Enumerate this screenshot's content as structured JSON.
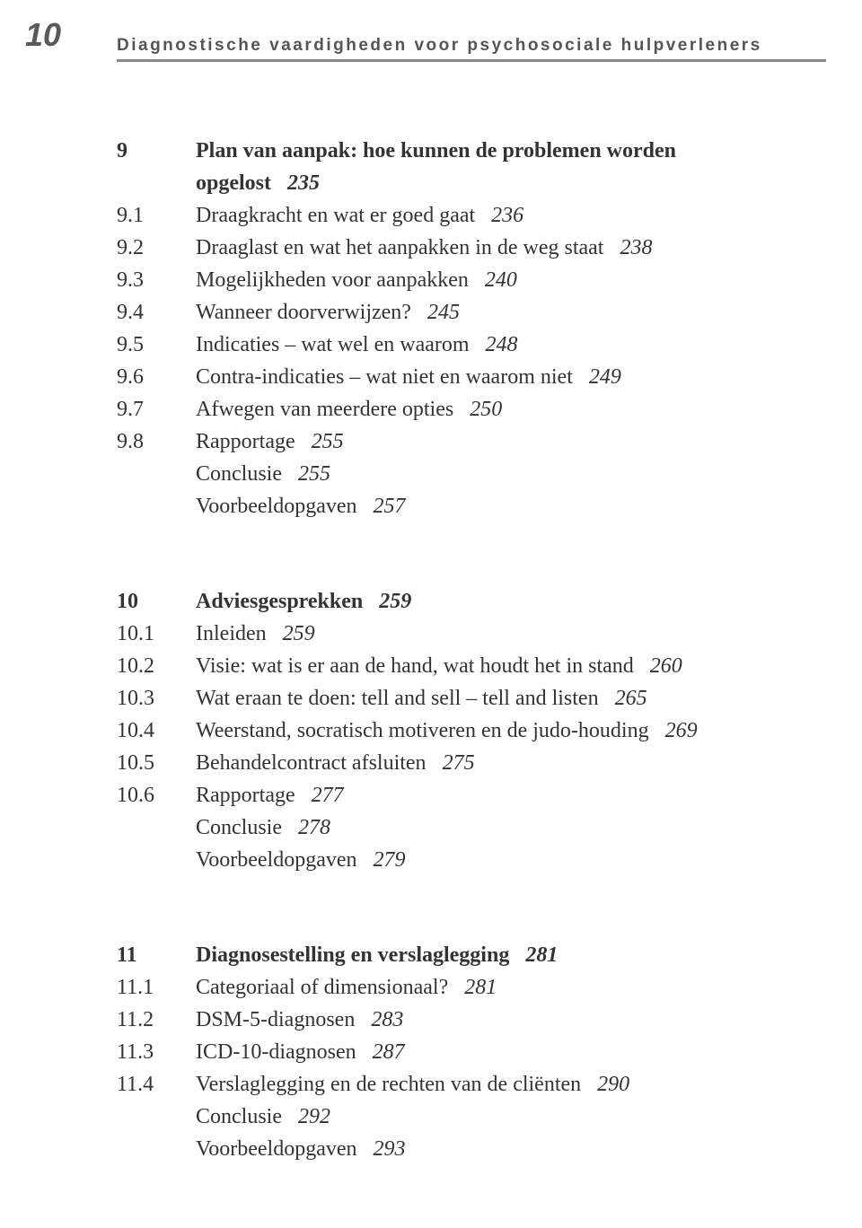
{
  "page_number": "10",
  "running_header": "Diagnostische vaardigheden voor psychosociale hulpverleners",
  "sections": [
    {
      "entries": [
        {
          "num": "9",
          "title_line1": "Plan van aanpak: hoe kunnen de problemen worden",
          "title_line2": "opgelost",
          "page": "235",
          "bold": true
        },
        {
          "num": "9.1",
          "title": "Draagkracht en wat er goed gaat",
          "page": "236"
        },
        {
          "num": "9.2",
          "title": "Draaglast en wat het aanpakken in de weg staat",
          "page": "238"
        },
        {
          "num": "9.3",
          "title": " Mogelijkheden voor aanpakken",
          "page": "240"
        },
        {
          "num": "9.4",
          "title": "Wanneer doorverwijzen?",
          "page": "245"
        },
        {
          "num": "9.5",
          "title": "Indicaties – wat wel en waarom",
          "page": "248"
        },
        {
          "num": "9.6",
          "title": "Contra-indicaties – wat niet en waarom niet",
          "page": "249"
        },
        {
          "num": "9.7",
          "title": "Afwegen van meerdere opties",
          "page": "250"
        },
        {
          "num": "9.8",
          "title": "Rapportage",
          "page": "255"
        },
        {
          "num": "",
          "title": "Conclusie",
          "page": "255"
        },
        {
          "num": "",
          "title": "Voorbeeldopgaven",
          "page": "257"
        }
      ]
    },
    {
      "entries": [
        {
          "num": "10",
          "title": "Adviesgesprekken",
          "page": "259",
          "bold": true
        },
        {
          "num": "10.1",
          "title": "Inleiden",
          "page": "259"
        },
        {
          "num": "10.2",
          "title": "Visie: wat is er aan de hand, wat houdt het in stand",
          "page": "260"
        },
        {
          "num": "10.3",
          "title": "Wat eraan te doen: tell and sell – tell and listen",
          "page": "265"
        },
        {
          "num": "10.4",
          "title": "Weerstand, socratisch motiveren en de judo-houding",
          "page": "269"
        },
        {
          "num": "10.5",
          "title": "Behandelcontract afsluiten",
          "page": "275"
        },
        {
          "num": "10.6",
          "title": "Rapportage",
          "page": "277"
        },
        {
          "num": "",
          "title": "Conclusie",
          "page": "278"
        },
        {
          "num": "",
          "title": "Voorbeeldopgaven",
          "page": "279"
        }
      ]
    },
    {
      "entries": [
        {
          "num": "11",
          "title": "Diagnosestelling en verslaglegging",
          "page": "281",
          "bold": true
        },
        {
          "num": "11.1",
          "title": "Categoriaal of dimensionaal?",
          "page": "281"
        },
        {
          "num": "11.2",
          "title": "DSM-5-diagnosen",
          "page": "283"
        },
        {
          "num": "11.3",
          "title": "ICD-10-diagnosen",
          "page": "287"
        },
        {
          "num": "11.4",
          "title": "Verslaglegging en de rechten van de cliënten",
          "page": "290"
        },
        {
          "num": "",
          "title": "Conclusie",
          "page": "292"
        },
        {
          "num": "",
          "title": "Voorbeeldopgaven",
          "page": "293"
        }
      ]
    }
  ]
}
